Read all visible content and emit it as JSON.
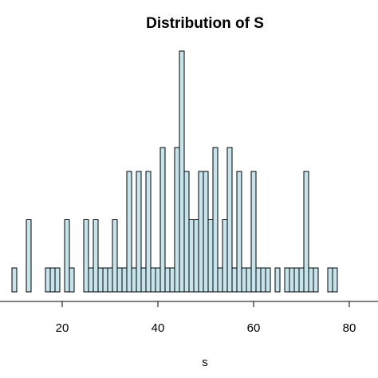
{
  "chart_data": {
    "type": "bar",
    "title": "Distribution of S",
    "xlabel": "s",
    "ylabel": "",
    "x_ticks": [
      20,
      40,
      60,
      80
    ],
    "xlim": [
      10,
      79
    ],
    "bin_width": 1,
    "bar_color": "#c6e4ec",
    "edge_color": "#000000",
    "x": [
      10,
      11,
      12,
      13,
      14,
      15,
      16,
      17,
      18,
      19,
      20,
      21,
      22,
      23,
      24,
      25,
      26,
      27,
      28,
      29,
      30,
      31,
      32,
      33,
      34,
      35,
      36,
      37,
      38,
      39,
      40,
      41,
      42,
      43,
      44,
      45,
      46,
      47,
      48,
      49,
      50,
      51,
      52,
      53,
      54,
      55,
      56,
      57,
      58,
      59,
      60,
      61,
      62,
      63,
      64,
      65,
      66,
      67,
      68,
      69,
      70,
      71,
      72,
      73,
      74,
      75,
      76,
      77,
      78
    ],
    "values": [
      1,
      0,
      0,
      3,
      0,
      0,
      0,
      1,
      1,
      1,
      0,
      3,
      1,
      0,
      0,
      3,
      1,
      3,
      1,
      1,
      1,
      3,
      1,
      1,
      5,
      1,
      5,
      1,
      5,
      1,
      1,
      6,
      1,
      1,
      6,
      10,
      5,
      3,
      3,
      5,
      5,
      3,
      6,
      1,
      3,
      6,
      1,
      5,
      1,
      1,
      5,
      1,
      1,
      1,
      0,
      1,
      0,
      1,
      1,
      1,
      1,
      5,
      1,
      1,
      0,
      0,
      1,
      1,
      0
    ],
    "grid": false,
    "axes": "x-only"
  }
}
